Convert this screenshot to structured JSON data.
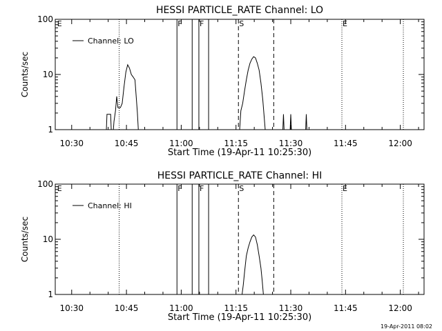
{
  "footer": {
    "timestamp": "19-Apr-2011 08:02"
  },
  "chart_data": [
    {
      "type": "line",
      "title": "HESSI PARTICLE_RATE Channel: LO",
      "xlabel": "Start Time (19-Apr-11 10:25:30)",
      "ylabel": "Counts/sec",
      "y_scale": "log",
      "ylim": [
        1,
        100
      ],
      "xlim": [
        "10:25:30",
        "12:06:30"
      ],
      "x_ticks": [
        "10:30",
        "10:45",
        "11:00",
        "11:15",
        "11:30",
        "11:45",
        "12:00"
      ],
      "y_ticks": [
        "1",
        "10",
        "100"
      ],
      "grid": false,
      "legend": {
        "position": "top-left",
        "entries": [
          "Channel: LO"
        ]
      },
      "series": [
        {
          "name": "Channel: LO",
          "points": [
            [
              "10:39:30",
              1
            ],
            [
              "10:39:40",
              1.9
            ],
            [
              "10:40:40",
              1.9
            ],
            [
              "10:40:50",
              1
            ],
            [
              "10:41:25",
              1
            ],
            [
              "10:41:35",
              1.4
            ],
            [
              "10:42:00",
              2.2
            ],
            [
              "10:42:20",
              4
            ],
            [
              "10:42:40",
              2.5
            ],
            [
              "10:43:20",
              2.5
            ],
            [
              "10:43:50",
              3
            ],
            [
              "10:44:20",
              6
            ],
            [
              "10:44:50",
              11
            ],
            [
              "10:45:20",
              15
            ],
            [
              "10:45:50",
              13
            ],
            [
              "10:46:20",
              10
            ],
            [
              "10:46:50",
              9
            ],
            [
              "10:47:20",
              8
            ],
            [
              "10:47:40",
              4
            ],
            [
              "10:48:00",
              2
            ],
            [
              "10:48:15",
              1
            ],
            [
              "11:16:00",
              1
            ],
            [
              "11:16:20",
              2.2
            ],
            [
              "11:16:50",
              3
            ],
            [
              "11:17:20",
              5
            ],
            [
              "11:17:50",
              8
            ],
            [
              "11:18:20",
              12
            ],
            [
              "11:18:50",
              16
            ],
            [
              "11:19:20",
              19
            ],
            [
              "11:19:50",
              21
            ],
            [
              "11:20:20",
              20
            ],
            [
              "11:20:50",
              16
            ],
            [
              "11:21:20",
              12
            ],
            [
              "11:21:50",
              7
            ],
            [
              "11:22:20",
              3.5
            ],
            [
              "11:22:45",
              1.6
            ],
            [
              "11:23:00",
              1
            ],
            [
              "11:27:50",
              1
            ],
            [
              "11:28:00",
              1.9
            ],
            [
              "11:28:10",
              1
            ],
            [
              "11:29:50",
              1
            ],
            [
              "11:30:00",
              1.9
            ],
            [
              "11:30:10",
              1
            ],
            [
              "11:34:05",
              1
            ],
            [
              "11:34:15",
              1.9
            ],
            [
              "11:34:25",
              1
            ]
          ]
        }
      ],
      "annotations": [
        {
          "label": "E",
          "time": "10:25:50",
          "style": "none"
        },
        {
          "label": "",
          "time": "10:43:00",
          "style": "dotted"
        },
        {
          "label": "F",
          "time": "10:58:50",
          "style": "solid"
        },
        {
          "label": "",
          "time": "11:03:00",
          "style": "solid"
        },
        {
          "label": "F",
          "time": "11:04:50",
          "style": "solid"
        },
        {
          "label": "",
          "time": "11:07:30",
          "style": "solid"
        },
        {
          "label": "S",
          "time": "11:15:40",
          "style": "dashed"
        },
        {
          "label": "",
          "time": "11:25:20",
          "style": "dashed"
        },
        {
          "label": "E",
          "time": "11:44:00",
          "style": "dotted"
        },
        {
          "label": "",
          "time": "12:00:50",
          "style": "dotted"
        }
      ]
    },
    {
      "type": "line",
      "title": "HESSI PARTICLE_RATE Channel: HI",
      "xlabel": "Start Time (19-Apr-11 10:25:30)",
      "ylabel": "Counts/sec",
      "y_scale": "log",
      "ylim": [
        1,
        100
      ],
      "xlim": [
        "10:25:30",
        "12:06:30"
      ],
      "x_ticks": [
        "10:30",
        "10:45",
        "11:00",
        "11:15",
        "11:30",
        "11:45",
        "12:00"
      ],
      "y_ticks": [
        "1",
        "10",
        "100"
      ],
      "grid": false,
      "legend": {
        "position": "top-left",
        "entries": [
          "Channel: HI"
        ]
      },
      "series": [
        {
          "name": "Channel: HI",
          "points": [
            [
              "11:16:40",
              1
            ],
            [
              "11:17:00",
              1.5
            ],
            [
              "11:17:20",
              2.5
            ],
            [
              "11:17:50",
              5
            ],
            [
              "11:18:20",
              7
            ],
            [
              "11:18:50",
              9
            ],
            [
              "11:19:20",
              11
            ],
            [
              "11:19:50",
              12
            ],
            [
              "11:20:20",
              11
            ],
            [
              "11:20:50",
              8
            ],
            [
              "11:21:20",
              5
            ],
            [
              "11:21:50",
              3
            ],
            [
              "11:22:10",
              1.8
            ],
            [
              "11:22:30",
              1
            ]
          ]
        }
      ],
      "annotations": [
        {
          "label": "E",
          "time": "10:25:50",
          "style": "none"
        },
        {
          "label": "",
          "time": "10:43:00",
          "style": "dotted"
        },
        {
          "label": "F",
          "time": "10:58:50",
          "style": "solid"
        },
        {
          "label": "",
          "time": "11:03:00",
          "style": "solid"
        },
        {
          "label": "F",
          "time": "11:04:50",
          "style": "solid"
        },
        {
          "label": "",
          "time": "11:07:30",
          "style": "solid"
        },
        {
          "label": "S",
          "time": "11:15:40",
          "style": "dashed"
        },
        {
          "label": "",
          "time": "11:25:20",
          "style": "dashed"
        },
        {
          "label": "E",
          "time": "11:44:00",
          "style": "dotted"
        },
        {
          "label": "",
          "time": "12:00:50",
          "style": "dotted"
        }
      ]
    }
  ]
}
